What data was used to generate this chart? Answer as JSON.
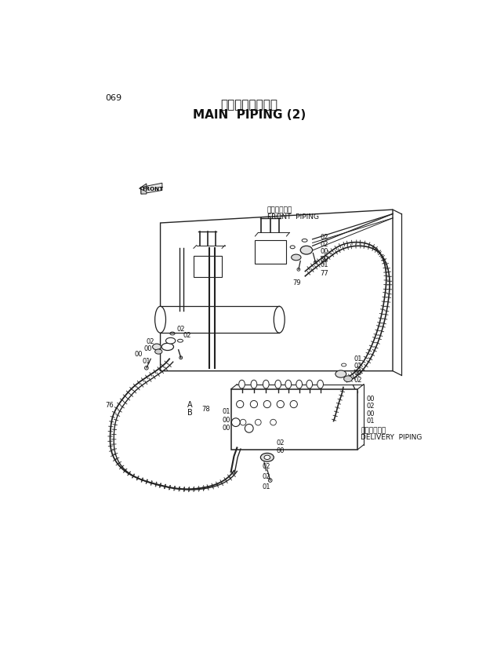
{
  "title_jp": "メイン配管（２）",
  "title_en": "MAIN  PIPING (2)",
  "page_num": "069",
  "bg_color": "#ffffff",
  "line_color": "#222222",
  "text_color": "#111111",
  "label_front_jp": "フロント配管",
  "label_front_en": "FRONT  PIPING",
  "label_delivery_jp": "デリベリ配管",
  "label_delivery_en": "DELIVERY  PIPING",
  "figsize": [
    6.2,
    8.27
  ],
  "dpi": 100
}
